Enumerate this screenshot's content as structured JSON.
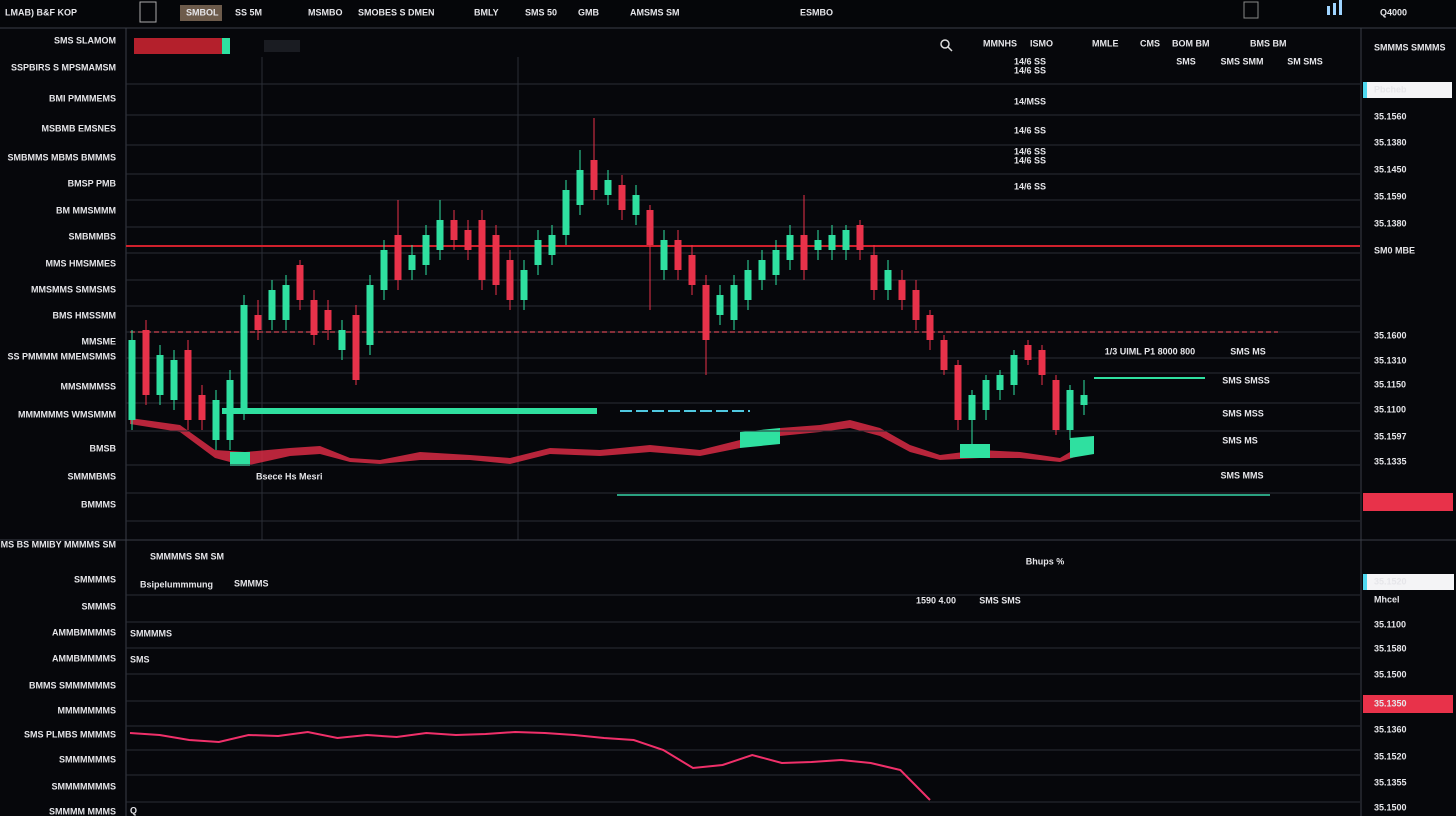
{
  "ui": {
    "top_bar": [
      "LMAB) B&F KOP",
      "SMBOL",
      "SS 5M",
      "MSMBO",
      "SMOBES S DMEN",
      "BMLY",
      "SMS 50",
      "GMB",
      "AMSMS SM",
      "ESMBO",
      "Q4000"
    ],
    "chart_header": [
      "MMNHS",
      "ISMO",
      "MMLE",
      "CMS",
      "BOM BM",
      "BMS BM"
    ],
    "left_labels": [
      "SMS SLAMOM",
      "SSPBIRS S MPSMAMSM",
      "BMI PMMMEMS",
      "MSBMB EMSNES",
      "SMBMMS MBMS BMMMS",
      "BMSP PMB",
      "BM MMSMMM",
      "SMBMMBS",
      "MMS HMSMMES",
      "MMSMMS SMMSMS",
      "BMS HMSSMM",
      "MMSME",
      "SS PMMMM MMEMSMMS",
      "MMSMMMSS",
      "MMMMMMS WMSMMM",
      "BMSB",
      "SMMMBMS",
      "BMMMS"
    ],
    "lower_left_labels": [
      "SMMS BS MMIBY MMMMS SM",
      "SMMMMS",
      "SMMMS",
      "AMMBMMMMS",
      "AMMBMMMMS",
      "BMMS SMMMMMMS",
      "MMMMMMMS",
      "SMS PLMBS MMMMS",
      "SMMMMMMS",
      "SMMMMMMMS",
      "SMMMM MMMS"
    ],
    "right_labels": [
      "SMMMS SMMMS",
      "Pbcheb",
      "35.1560",
      "35.1380",
      "35.1450",
      "35.1590",
      "35.1380",
      "SM0 MBE",
      "35.1600",
      "35.1310",
      "35.1150",
      "35.1100",
      "35.1597",
      "35.1335",
      "35.1520",
      "Mhcel",
      "35.1100",
      "35.1580",
      "35.1500",
      "35.1350",
      "35.1360",
      "35.1520",
      "35.1355",
      "35.1500"
    ],
    "center_labels": [
      "14/6 SS",
      "14/6 SS",
      "14/MSS",
      "14/6 SS",
      "14/6 SS",
      "14/6 SS",
      "14/6 SS",
      "SMS",
      "SMS SMM",
      "SM SMS",
      "1/3 UIML P1 8000 800",
      "SMS MS",
      "SMS SMSS",
      "SMS MSS",
      "SMS MS",
      "SMS MMS"
    ],
    "annotations": [
      "Bsece Hs Mesri",
      "SMMMMS SM SM",
      "Bsipelummmung",
      "SMMMS",
      "Bhups %",
      "1590 4.00",
      "SMS SMS",
      "SMMMMS",
      "SMS",
      "Q"
    ]
  },
  "chart_data": [
    {
      "type": "candlestick",
      "ylim": [
        0,
        468
      ],
      "candles": [
        [
          105,
          195,
          95,
          185
        ],
        [
          195,
          205,
          120,
          130
        ],
        [
          130,
          180,
          120,
          170
        ],
        [
          125,
          175,
          115,
          165
        ],
        [
          175,
          185,
          95,
          105
        ],
        [
          130,
          140,
          95,
          105
        ],
        [
          85,
          135,
          75,
          125
        ],
        [
          85,
          155,
          75,
          145
        ],
        [
          115,
          230,
          105,
          220
        ],
        [
          210,
          225,
          185,
          195
        ],
        [
          205,
          245,
          195,
          235
        ],
        [
          205,
          250,
          195,
          240
        ],
        [
          260,
          265,
          215,
          225
        ],
        [
          225,
          235,
          180,
          190
        ],
        [
          215,
          225,
          185,
          195
        ],
        [
          175,
          205,
          165,
          195
        ],
        [
          210,
          220,
          140,
          145
        ],
        [
          180,
          250,
          170,
          240
        ],
        [
          235,
          285,
          225,
          275
        ],
        [
          290,
          325,
          235,
          245
        ],
        [
          255,
          280,
          245,
          270
        ],
        [
          260,
          300,
          250,
          290
        ],
        [
          275,
          325,
          265,
          305
        ],
        [
          305,
          315,
          275,
          285
        ],
        [
          295,
          305,
          265,
          275
        ],
        [
          305,
          315,
          235,
          245
        ],
        [
          290,
          300,
          230,
          240
        ],
        [
          265,
          275,
          215,
          225
        ],
        [
          225,
          265,
          215,
          255
        ],
        [
          260,
          295,
          250,
          285
        ],
        [
          270,
          300,
          260,
          290
        ],
        [
          290,
          345,
          280,
          335
        ],
        [
          320,
          375,
          310,
          355
        ],
        [
          365,
          407,
          325,
          335
        ],
        [
          330,
          355,
          320,
          345
        ],
        [
          340,
          350,
          305,
          315
        ],
        [
          310,
          340,
          300,
          330
        ],
        [
          315,
          320,
          215,
          280
        ],
        [
          255,
          295,
          245,
          285
        ],
        [
          285,
          295,
          245,
          255
        ],
        [
          270,
          280,
          230,
          240
        ],
        [
          240,
          250,
          150,
          185
        ],
        [
          210,
          240,
          200,
          230
        ],
        [
          205,
          250,
          195,
          240
        ],
        [
          225,
          265,
          215,
          255
        ],
        [
          245,
          275,
          235,
          265
        ],
        [
          250,
          285,
          240,
          275
        ],
        [
          265,
          300,
          255,
          290
        ],
        [
          290,
          330,
          245,
          255
        ],
        [
          275,
          295,
          265,
          285
        ],
        [
          275,
          300,
          265,
          290
        ],
        [
          275,
          300,
          265,
          295
        ],
        [
          300,
          305,
          265,
          275
        ],
        [
          270,
          280,
          225,
          235
        ],
        [
          235,
          265,
          225,
          255
        ],
        [
          245,
          255,
          215,
          225
        ],
        [
          235,
          245,
          195,
          205
        ],
        [
          210,
          215,
          175,
          185
        ],
        [
          185,
          190,
          150,
          155
        ],
        [
          160,
          165,
          95,
          105
        ],
        [
          105,
          135,
          80,
          130
        ],
        [
          115,
          150,
          105,
          145
        ],
        [
          135,
          155,
          125,
          150
        ],
        [
          140,
          175,
          130,
          170
        ],
        [
          180,
          185,
          160,
          165
        ],
        [
          175,
          180,
          140,
          150
        ],
        [
          145,
          150,
          90,
          95
        ],
        [
          95,
          140,
          85,
          135
        ],
        [
          120,
          145,
          110,
          130
        ]
      ],
      "up_color": "#2fe0a0",
      "down_color": "#e8324a"
    },
    {
      "type": "line",
      "ylim": [
        0,
        110
      ],
      "color": "#f0306a",
      "values": [
        77,
        75,
        70,
        68,
        75,
        74,
        78,
        72,
        75,
        73,
        77,
        75,
        76,
        78,
        77,
        75,
        72,
        70,
        60,
        42,
        45,
        55,
        47,
        48,
        50,
        47,
        40,
        10
      ]
    }
  ]
}
